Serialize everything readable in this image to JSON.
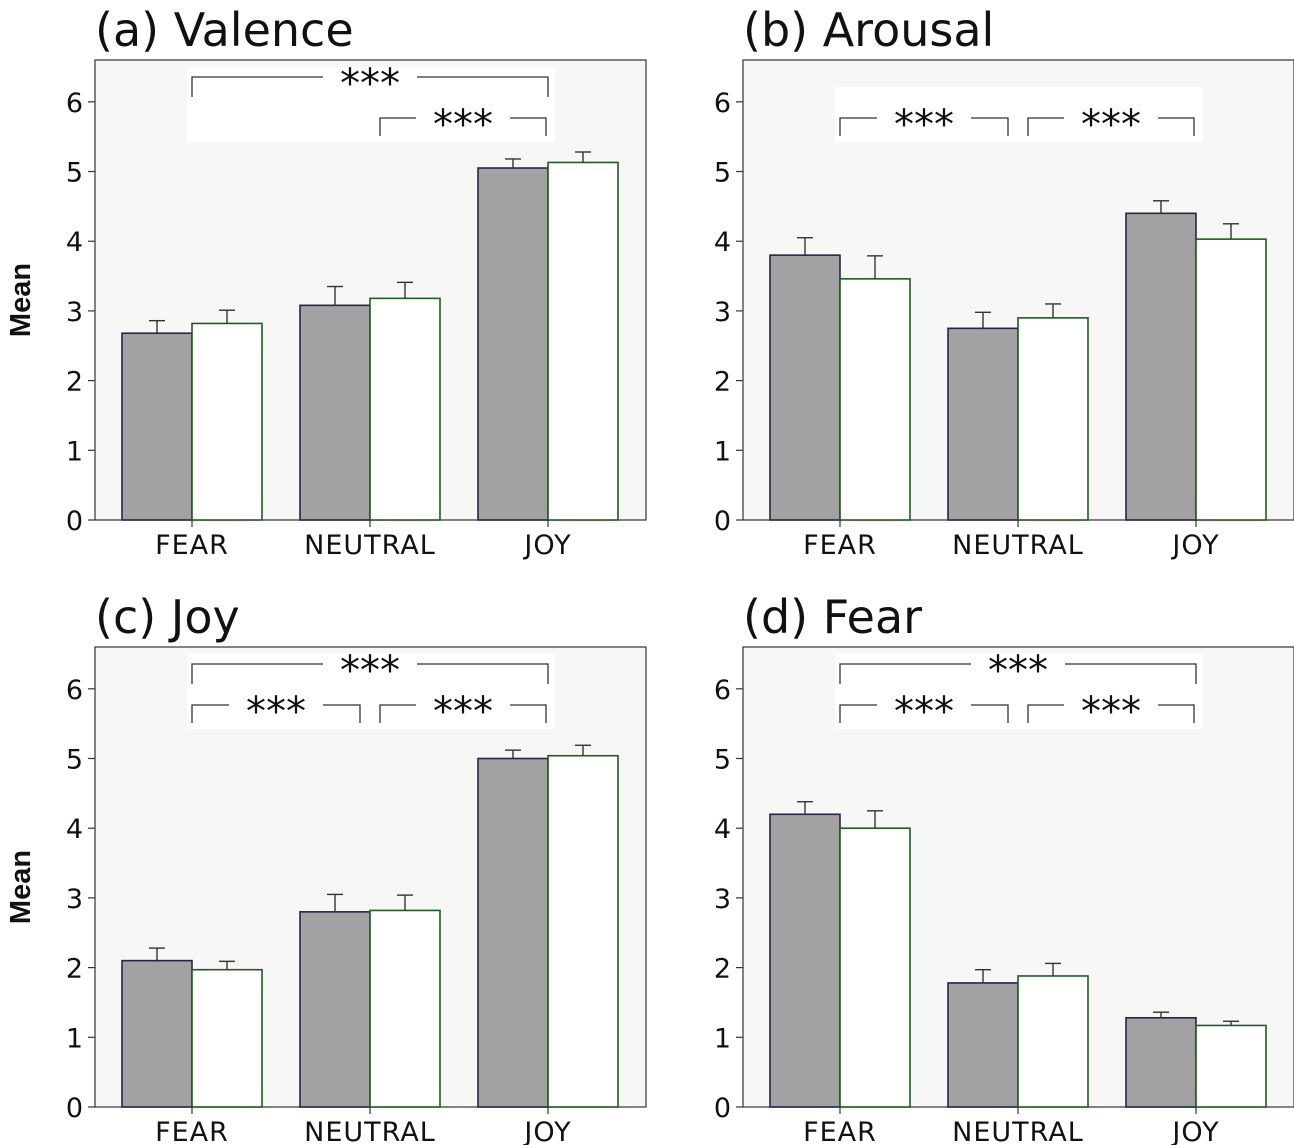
{
  "colors": {
    "plot_background": "#f7f8f5",
    "bar_filled": "#a2a2a2",
    "bar_filled_edge": "#23264a",
    "bar_empty": "#ffffff",
    "bar_empty_edge": "#1f5c1f",
    "significance_box": "#ffffff"
  },
  "chart_data": [
    {
      "type": "bar",
      "title": "(a) Valence",
      "ylabel": "Mean",
      "ylim": [
        0,
        6.6
      ],
      "yticks": [
        "0",
        "1",
        "2",
        "3",
        "4",
        "5",
        "6"
      ],
      "categories": [
        "FEAR",
        "NEUTRAL",
        "JOY"
      ],
      "series": [
        {
          "style": "filled",
          "values": [
            2.68,
            3.08,
            5.05
          ],
          "errors": [
            0.18,
            0.27,
            0.13
          ]
        },
        {
          "style": "empty",
          "values": [
            2.82,
            3.18,
            5.13
          ],
          "errors": [
            0.19,
            0.23,
            0.15
          ]
        }
      ],
      "significance": [
        {
          "from": 0,
          "to": 2,
          "label": "***",
          "level": 0
        },
        {
          "from": 1,
          "to": 2,
          "label": "***",
          "level": 1
        }
      ]
    },
    {
      "type": "bar",
      "title": "(b) Arousal",
      "ylabel": "",
      "ylim": [
        0,
        6.6
      ],
      "yticks": [
        "0",
        "1",
        "2",
        "3",
        "4",
        "5",
        "6"
      ],
      "categories": [
        "FEAR",
        "NEUTRAL",
        "JOY"
      ],
      "series": [
        {
          "style": "filled",
          "values": [
            3.8,
            2.75,
            4.4
          ],
          "errors": [
            0.25,
            0.23,
            0.18
          ]
        },
        {
          "style": "empty",
          "values": [
            3.46,
            2.9,
            4.03
          ],
          "errors": [
            0.33,
            0.2,
            0.22
          ]
        }
      ],
      "significance": [
        {
          "from": 0,
          "to": 1,
          "label": "***",
          "level": 1
        },
        {
          "from": 1,
          "to": 2,
          "label": "***",
          "level": 1
        }
      ]
    },
    {
      "type": "bar",
      "title": "(c) Joy",
      "ylabel": "Mean",
      "ylim": [
        0,
        6.6
      ],
      "yticks": [
        "0",
        "1",
        "2",
        "3",
        "4",
        "5",
        "6"
      ],
      "categories": [
        "FEAR",
        "NEUTRAL",
        "JOY"
      ],
      "series": [
        {
          "style": "filled",
          "values": [
            2.1,
            2.8,
            5.0
          ],
          "errors": [
            0.18,
            0.25,
            0.12
          ]
        },
        {
          "style": "empty",
          "values": [
            1.97,
            2.82,
            5.04
          ],
          "errors": [
            0.12,
            0.22,
            0.15
          ]
        }
      ],
      "significance": [
        {
          "from": 0,
          "to": 2,
          "label": "***",
          "level": 0
        },
        {
          "from": 0,
          "to": 1,
          "label": "***",
          "level": 1
        },
        {
          "from": 1,
          "to": 2,
          "label": "***",
          "level": 1
        }
      ]
    },
    {
      "type": "bar",
      "title": "(d) Fear",
      "ylabel": "",
      "ylim": [
        0,
        6.6
      ],
      "yticks": [
        "0",
        "1",
        "2",
        "3",
        "4",
        "5",
        "6"
      ],
      "categories": [
        "FEAR",
        "NEUTRAL",
        "JOY"
      ],
      "series": [
        {
          "style": "filled",
          "values": [
            4.2,
            1.78,
            1.28
          ],
          "errors": [
            0.18,
            0.19,
            0.08
          ]
        },
        {
          "style": "empty",
          "values": [
            4.0,
            1.88,
            1.17
          ],
          "errors": [
            0.25,
            0.18,
            0.06
          ]
        }
      ],
      "significance": [
        {
          "from": 0,
          "to": 2,
          "label": "***",
          "level": 0
        },
        {
          "from": 0,
          "to": 1,
          "label": "***",
          "level": 1
        },
        {
          "from": 1,
          "to": 2,
          "label": "***",
          "level": 1
        }
      ]
    }
  ]
}
